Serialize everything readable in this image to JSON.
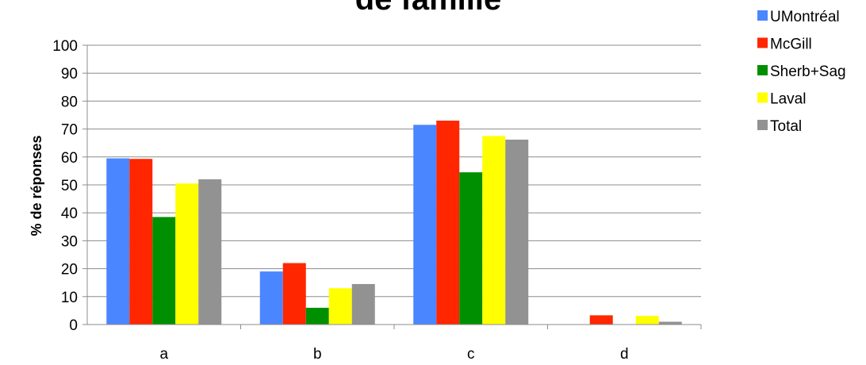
{
  "chart_data": {
    "type": "bar",
    "title": "de famille",
    "xlabel": "",
    "ylabel": "% de réponses",
    "categories": [
      "a",
      "b",
      "c",
      "d"
    ],
    "yticks": [
      "0",
      "10",
      "20",
      "30",
      "40",
      "50",
      "60",
      "70",
      "80",
      "90",
      "100"
    ],
    "ylim": [
      0,
      100
    ],
    "grid": true,
    "legend_position": "top-right",
    "series": [
      {
        "name": "UMontréal",
        "color": "#4a86ff",
        "values": [
          59.5,
          19,
          71.5,
          0
        ]
      },
      {
        "name": "McGill",
        "color": "#ff2600",
        "values": [
          59.3,
          22,
          73,
          3.3
        ]
      },
      {
        "name": "Sherb+Sag",
        "color": "#008f00",
        "values": [
          38.5,
          6,
          54.5,
          0
        ]
      },
      {
        "name": "Laval",
        "color": "#ffff00",
        "values": [
          50.5,
          13,
          67.5,
          3.1
        ]
      },
      {
        "name": "Total",
        "color": "#929292",
        "values": [
          52,
          14.5,
          66.2,
          1
        ]
      }
    ]
  }
}
